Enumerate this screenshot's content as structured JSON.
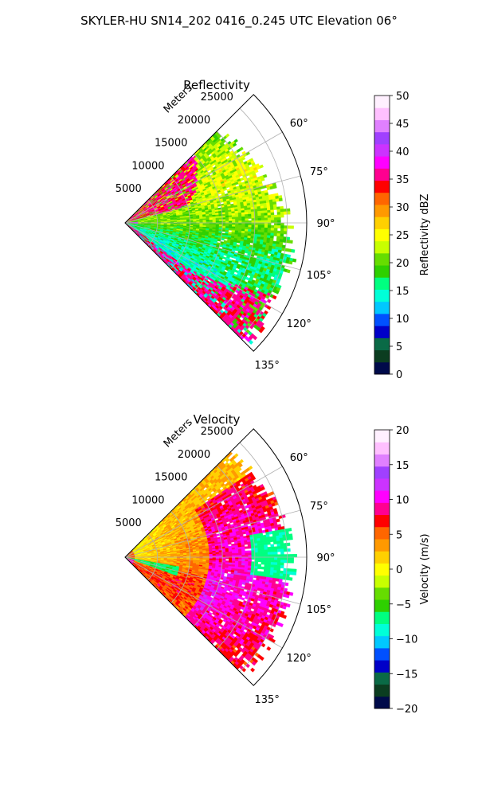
{
  "figure": {
    "suptitle": "SKYLER-HU  SN14_202  0416_0.245 UTC Elevation 06°"
  },
  "chart_data": [
    {
      "type": "heatmap",
      "projection": "polar-sector",
      "title": "Reflectivity",
      "radial_axis_label": "Meters",
      "radial_ticks": [
        5000,
        10000,
        15000,
        20000,
        25000
      ],
      "radial_tick_labels": [
        "5000",
        "10000",
        "15000",
        "20000",
        "25000"
      ],
      "r_max": 28000,
      "azimuth_range_deg": [
        45,
        135
      ],
      "azimuth_ticks_deg": [
        60,
        75,
        90,
        105,
        120,
        135
      ],
      "azimuth_tick_labels": [
        "60°",
        "75°",
        "90°",
        "105°",
        "120°",
        "135°"
      ],
      "grid": true,
      "colorbar": {
        "label": "Reflectivity dBZ",
        "vmin": 0,
        "vmax": 50,
        "ticks": [
          0,
          5,
          10,
          15,
          20,
          25,
          30,
          35,
          40,
          45,
          50
        ],
        "tick_labels": [
          "0",
          "5",
          "10",
          "15",
          "20",
          "25",
          "30",
          "35",
          "40",
          "45",
          "50"
        ],
        "colormap": "homeyer_rainbow",
        "stops": [
          "#000a4a",
          "#0b3d20",
          "#0a6a46",
          "#0000c8",
          "#0050ff",
          "#00c8ff",
          "#00ffd8",
          "#00ff80",
          "#2ed000",
          "#66dd00",
          "#c8ff00",
          "#ffff00",
          "#ffd000",
          "#ff9900",
          "#ff6600",
          "#ff0000",
          "#ff0090",
          "#ff00ff",
          "#cc33ff",
          "#a040ff",
          "#e080ff",
          "#ffc0ff",
          "#fff0ff"
        ]
      },
      "field_summary": "mostly 18–30 dBZ with scattered cores of 33–38 dBZ"
    },
    {
      "type": "heatmap",
      "projection": "polar-sector",
      "title": "Velocity",
      "radial_axis_label": "Meters",
      "radial_ticks": [
        5000,
        10000,
        15000,
        20000,
        25000
      ],
      "radial_tick_labels": [
        "5000",
        "10000",
        "15000",
        "20000",
        "25000"
      ],
      "r_max": 28000,
      "azimuth_range_deg": [
        45,
        135
      ],
      "azimuth_ticks_deg": [
        60,
        75,
        90,
        105,
        120,
        135
      ],
      "azimuth_tick_labels": [
        "60°",
        "75°",
        "90°",
        "105°",
        "120°",
        "135°"
      ],
      "grid": true,
      "colorbar": {
        "label": "Velocity (m/s)",
        "vmin": -20,
        "vmax": 20,
        "ticks": [
          -20,
          -15,
          -10,
          -5,
          0,
          5,
          10,
          15,
          20
        ],
        "tick_labels": [
          "−20",
          "−15",
          "−10",
          "−5",
          "0",
          "5",
          "10",
          "15",
          "20"
        ],
        "colormap": "balance_rainbow",
        "stops": [
          "#000a4a",
          "#0b3d20",
          "#0a6a46",
          "#0000c8",
          "#0050ff",
          "#00c8ff",
          "#00ffd8",
          "#00ff80",
          "#2ed000",
          "#66dd00",
          "#c8ff00",
          "#ffff00",
          "#ffd000",
          "#ff9900",
          "#ff6600",
          "#ff0000",
          "#ff0090",
          "#ff00ff",
          "#cc33ff",
          "#a040ff",
          "#e080ff",
          "#ffc0ff",
          "#fff0ff"
        ]
      },
      "field_summary": "mostly 5–15 m/s (red/magenta) with a -12 m/s (cyan) region near 90°"
    }
  ]
}
